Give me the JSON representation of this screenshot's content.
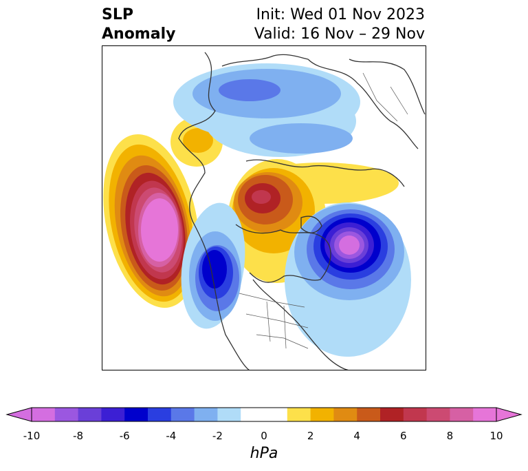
{
  "title": {
    "left_lines": [
      "SLP",
      "Anomaly"
    ],
    "right_lines": [
      "Init: Wed 01 Nov 2023",
      "Valid: 16 Nov – 29 Nov"
    ]
  },
  "map": {
    "projection": "polar-stereographic-north",
    "field": "SLP anomaly",
    "anomaly_centers": [
      {
        "region": "north-pacific-gulf-of-alaska",
        "sign": "positive",
        "peak_hpa": 10
      },
      {
        "region": "arctic-ocean-siberian-side",
        "sign": "positive",
        "peak_hpa": 6
      },
      {
        "region": "north-atlantic",
        "sign": "negative",
        "peak_hpa": -8
      },
      {
        "region": "western-canada",
        "sign": "negative",
        "peak_hpa": -7
      },
      {
        "region": "northern-eurasia",
        "sign": "negative",
        "peak_hpa": -4
      }
    ]
  },
  "colorbar": {
    "unit": "hPa",
    "min": -10,
    "max": 10,
    "interval": 1,
    "extend": "both",
    "ticks": [
      "-10",
      "-8",
      "-6",
      "-4",
      "-2",
      "0",
      "2",
      "4",
      "6",
      "8",
      "10"
    ],
    "colors": [
      "#d46ee0",
      "#9b57e0",
      "#6a3fd8",
      "#3c1fd4",
      "#0000cc",
      "#2a3ee0",
      "#5a78e8",
      "#7fb0f0",
      "#b0dcf8",
      "#ffffff",
      "#ffffff",
      "#fde04a",
      "#f2b200",
      "#e08b12",
      "#c95a1a",
      "#b02225",
      "#c1374e",
      "#cc4a72",
      "#d660a4",
      "#e675d8"
    ]
  }
}
